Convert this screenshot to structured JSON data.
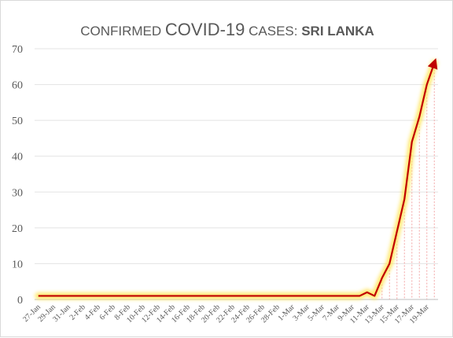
{
  "chart_data": {
    "type": "line",
    "title_part1": "CONFIRMED ",
    "title_part2": "COVID-19",
    "title_part3": " CASES: ",
    "title_part4": "SRI LANKA",
    "xlabel": "",
    "ylabel": "",
    "ylim": [
      0,
      70
    ],
    "yticks": [
      0,
      10,
      20,
      30,
      40,
      50,
      60,
      70
    ],
    "grid": true,
    "x_tick_labels": [
      "27-Jan",
      "29-Jan",
      "31-Jan",
      "2-Feb",
      "4-Feb",
      "6-Feb",
      "8-Feb",
      "10-Feb",
      "12-Feb",
      "14-Feb",
      "16-Feb",
      "18-Feb",
      "20-Feb",
      "22-Feb",
      "24-Feb",
      "26-Feb",
      "28-Feb",
      "1-Mar",
      "3-Mar",
      "5-Mar",
      "7-Mar",
      "9-Mar",
      "11-Mar",
      "13-Mar",
      "15-Mar",
      "17-Mar",
      "19-Mar"
    ],
    "x": [
      "27-Jan",
      "28-Jan",
      "29-Jan",
      "30-Jan",
      "31-Jan",
      "1-Feb",
      "2-Feb",
      "3-Feb",
      "4-Feb",
      "5-Feb",
      "6-Feb",
      "7-Feb",
      "8-Feb",
      "9-Feb",
      "10-Feb",
      "11-Feb",
      "12-Feb",
      "13-Feb",
      "14-Feb",
      "15-Feb",
      "16-Feb",
      "17-Feb",
      "18-Feb",
      "19-Feb",
      "20-Feb",
      "21-Feb",
      "22-Feb",
      "23-Feb",
      "24-Feb",
      "25-Feb",
      "26-Feb",
      "27-Feb",
      "28-Feb",
      "29-Feb",
      "1-Mar",
      "2-Mar",
      "3-Mar",
      "4-Mar",
      "5-Mar",
      "6-Mar",
      "7-Mar",
      "8-Mar",
      "9-Mar",
      "10-Mar",
      "11-Mar",
      "12-Mar",
      "13-Mar",
      "14-Mar",
      "15-Mar",
      "16-Mar",
      "17-Mar",
      "18-Mar",
      "19-Mar",
      "20-Mar"
    ],
    "series": [
      {
        "values": [
          1,
          1,
          1,
          1,
          1,
          1,
          1,
          1,
          1,
          1,
          1,
          1,
          1,
          1,
          1,
          1,
          1,
          1,
          1,
          1,
          1,
          1,
          1,
          1,
          1,
          1,
          1,
          1,
          1,
          1,
          1,
          1,
          1,
          1,
          1,
          1,
          1,
          1,
          1,
          1,
          1,
          1,
          1,
          1,
          2,
          1,
          6,
          10,
          19,
          28,
          44,
          51,
          60,
          66
        ]
      }
    ],
    "line_color": "#c00000",
    "glow_color": "#ffe65c",
    "drop_color": "#f4a6a6"
  }
}
